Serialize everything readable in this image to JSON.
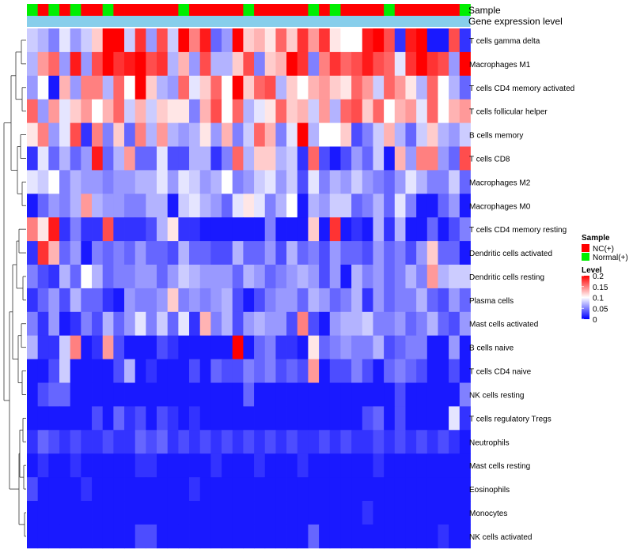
{
  "chart_data": {
    "type": "heatmap",
    "annotation_labels": {
      "sample": "Sample",
      "expression": "Gene expression level"
    },
    "legend": {
      "sample_title": "Sample",
      "sample_entries": [
        {
          "name": "NC(+)",
          "color": "#ff0000"
        },
        {
          "name": "Normal(+)",
          "color": "#00ee00"
        }
      ],
      "level_title": "Level",
      "level_ticks": [
        "0.2",
        "0.15",
        "0.1",
        "0.05",
        "0"
      ],
      "level_tick_values": [
        0.2,
        0.15,
        0.1,
        0.05,
        0
      ],
      "level_range": [
        0,
        0.2
      ]
    },
    "colors": {
      "low": "#0000ff",
      "mid": "#ffffff",
      "high": "#ff0000",
      "nc": "#ff0000",
      "normal": "#00ee00",
      "expression_bar": "#87ceeb"
    },
    "columns_sample": [
      "Normal",
      "NC",
      "Normal",
      "NC",
      "Normal",
      "NC",
      "NC",
      "Normal",
      "NC",
      "NC",
      "NC",
      "NC",
      "NC",
      "NC",
      "Normal",
      "NC",
      "NC",
      "NC",
      "NC",
      "NC",
      "Normal",
      "NC",
      "NC",
      "NC",
      "NC",
      "NC",
      "Normal",
      "NC",
      "Normal",
      "NC",
      "NC",
      "NC",
      "NC",
      "Normal",
      "NC",
      "NC",
      "NC",
      "NC",
      "NC",
      "NC",
      "Normal"
    ],
    "rows": [
      "T cells gamma delta",
      "Macrophages M1",
      "T cells CD4 memory activated",
      "T cells follicular helper",
      "B cells memory",
      "T cells CD8",
      "Macrophages M2",
      "Macrophages M0",
      "T cells CD4 memory resting",
      "Dendritic cells activated",
      "Dendritic cells resting",
      "Plasma cells",
      "Mast cells activated",
      "B cells naive",
      "T cells CD4 naive",
      "NK cells resting",
      "T cells regulatory  Tregs",
      "Neutrophils",
      "Mast cells resting",
      "Eosinophils",
      "Monocytes",
      "NK cells activated"
    ],
    "values": [
      [
        0.08,
        0.07,
        0.05,
        0.09,
        0.06,
        0.08,
        0.12,
        0.2,
        0.2,
        0.08,
        0.18,
        0.06,
        0.17,
        0.08,
        0.2,
        0.15,
        0.19,
        0.04,
        0.06,
        0.2,
        0.12,
        0.13,
        0.11,
        0.16,
        0.12,
        0.18,
        0.14,
        0.18,
        0.11,
        0.1,
        0.1,
        0.19,
        0.2,
        0.17,
        0.02,
        0.19,
        0.2,
        0.01,
        0.01,
        0.17,
        0.02
      ],
      [
        0.07,
        0.14,
        0.16,
        0.06,
        0.19,
        0.06,
        0.17,
        0.2,
        0.18,
        0.19,
        0.2,
        0.17,
        0.18,
        0.07,
        0.13,
        0.06,
        0.17,
        0.07,
        0.07,
        0.12,
        0.17,
        0.05,
        0.12,
        0.13,
        0.2,
        0.18,
        0.05,
        0.15,
        0.18,
        0.16,
        0.17,
        0.19,
        0.17,
        0.16,
        0.09,
        0.18,
        0.2,
        0.18,
        0.17,
        0.06,
        0.2
      ],
      [
        0.06,
        0.1,
        0.01,
        0.13,
        0.06,
        0.15,
        0.15,
        0.07,
        0.16,
        0.1,
        0.2,
        0.12,
        0.07,
        0.06,
        0.16,
        0.09,
        0.12,
        0.16,
        0.1,
        0.2,
        0.12,
        0.16,
        0.17,
        0.07,
        0.12,
        0.1,
        0.13,
        0.14,
        0.12,
        0.11,
        0.16,
        0.14,
        0.08,
        0.16,
        0.14,
        0.11,
        0.07,
        0.16,
        0.1,
        0.07,
        0.04
      ],
      [
        0.16,
        0.06,
        0.14,
        0.09,
        0.12,
        0.14,
        0.1,
        0.13,
        0.16,
        0.08,
        0.13,
        0.08,
        0.12,
        0.11,
        0.11,
        0.05,
        0.13,
        0.17,
        0.1,
        0.16,
        0.07,
        0.09,
        0.11,
        0.16,
        0.12,
        0.13,
        0.08,
        0.14,
        0.07,
        0.16,
        0.17,
        0.12,
        0.16,
        0.1,
        0.13,
        0.14,
        0.09,
        0.16,
        0.1,
        0.13,
        0.14
      ],
      [
        0.11,
        0.15,
        0.06,
        0.09,
        0.17,
        0.02,
        0.15,
        0.05,
        0.12,
        0.04,
        0.15,
        0.07,
        0.14,
        0.07,
        0.06,
        0.07,
        0.11,
        0.06,
        0.13,
        0.05,
        0.08,
        0.16,
        0.13,
        0.05,
        0.09,
        0.2,
        0.07,
        0.1,
        0.1,
        0.12,
        0.03,
        0.05,
        0.08,
        0.13,
        0.07,
        0.04,
        0.08,
        0.12,
        0.07,
        0.06,
        0.08
      ],
      [
        0.02,
        0.09,
        0.04,
        0.07,
        0.04,
        0.06,
        0.19,
        0.04,
        0.07,
        0.14,
        0.04,
        0.04,
        0.09,
        0.03,
        0.03,
        0.07,
        0.07,
        0.02,
        0.05,
        0.16,
        0.07,
        0.12,
        0.12,
        0.07,
        0.08,
        0.02,
        0.16,
        0.03,
        0.01,
        0.03,
        0.06,
        0.04,
        0.08,
        0.01,
        0.13,
        0.06,
        0.15,
        0.15,
        0.06,
        0.04,
        0.17
      ],
      [
        0.09,
        0.08,
        0.1,
        0.05,
        0.07,
        0.06,
        0.06,
        0.05,
        0.06,
        0.06,
        0.07,
        0.07,
        0.09,
        0.06,
        0.09,
        0.08,
        0.06,
        0.07,
        0.1,
        0.05,
        0.06,
        0.08,
        0.09,
        0.06,
        0.08,
        0.03,
        0.09,
        0.05,
        0.07,
        0.06,
        0.08,
        0.06,
        0.05,
        0.04,
        0.06,
        0.09,
        0.07,
        0.05,
        0.05,
        0.08,
        0.04
      ],
      [
        0.01,
        0.04,
        0.06,
        0.05,
        0.07,
        0.14,
        0.07,
        0.06,
        0.06,
        0.05,
        0.05,
        0.07,
        0.07,
        0.01,
        0.08,
        0.09,
        0.07,
        0.06,
        0.04,
        0.09,
        0.11,
        0.09,
        0.05,
        0.07,
        0.1,
        0.01,
        0.07,
        0.06,
        0.08,
        0.08,
        0.04,
        0.05,
        0.07,
        0.04,
        0.09,
        0.05,
        0.01,
        0.01,
        0.04,
        0.06,
        0.01
      ],
      [
        0.15,
        0.11,
        0.19,
        0.02,
        0.05,
        0.02,
        0.02,
        0.17,
        0.02,
        0.02,
        0.02,
        0.03,
        0.07,
        0.11,
        0.02,
        0.02,
        0.01,
        0.01,
        0.01,
        0.01,
        0.01,
        0.01,
        0.05,
        0.01,
        0.01,
        0.01,
        0.12,
        0.01,
        0.18,
        0.01,
        0.02,
        0.01,
        0.07,
        0.02,
        0.07,
        0.01,
        0.01,
        0.04,
        0.01,
        0.03,
        0.05
      ],
      [
        0.02,
        0.18,
        0.13,
        0.04,
        0.06,
        0.01,
        0.05,
        0.04,
        0.05,
        0.04,
        0.06,
        0.04,
        0.04,
        0.03,
        0.07,
        0.04,
        0.04,
        0.03,
        0.03,
        0.07,
        0.04,
        0.04,
        0.06,
        0.03,
        0.07,
        0.04,
        0.05,
        0.03,
        0.06,
        0.04,
        0.04,
        0.03,
        0.06,
        0.04,
        0.05,
        0.03,
        0.06,
        0.12,
        0.04,
        0.04,
        0.01
      ],
      [
        0.05,
        0.03,
        0.02,
        0.07,
        0.04,
        0.1,
        0.07,
        0.04,
        0.05,
        0.05,
        0.06,
        0.06,
        0.04,
        0.06,
        0.08,
        0.07,
        0.06,
        0.06,
        0.06,
        0.04,
        0.07,
        0.06,
        0.04,
        0.05,
        0.06,
        0.07,
        0.06,
        0.03,
        0.06,
        0.01,
        0.07,
        0.05,
        0.06,
        0.04,
        0.05,
        0.07,
        0.05,
        0.14,
        0.07,
        0.08,
        0.08
      ],
      [
        0.02,
        0.04,
        0.06,
        0.03,
        0.07,
        0.04,
        0.04,
        0.02,
        0.01,
        0.06,
        0.05,
        0.05,
        0.06,
        0.12,
        0.05,
        0.06,
        0.05,
        0.06,
        0.07,
        0.03,
        0.01,
        0.03,
        0.05,
        0.06,
        0.06,
        0.04,
        0.07,
        0.06,
        0.04,
        0.05,
        0.07,
        0.02,
        0.06,
        0.04,
        0.05,
        0.05,
        0.07,
        0.04,
        0.03,
        0.06,
        0.04
      ],
      [
        0.05,
        0.02,
        0.06,
        0.01,
        0.02,
        0.05,
        0.03,
        0.07,
        0.04,
        0.06,
        0.09,
        0.05,
        0.08,
        0.04,
        0.09,
        0.02,
        0.13,
        0.05,
        0.07,
        0.03,
        0.06,
        0.07,
        0.06,
        0.06,
        0.03,
        0.15,
        0.03,
        0.01,
        0.06,
        0.07,
        0.07,
        0.08,
        0.05,
        0.05,
        0.06,
        0.04,
        0.05,
        0.07,
        0.04,
        0.03,
        0.06
      ],
      [
        0.07,
        0.02,
        0.02,
        0.08,
        0.15,
        0.01,
        0.02,
        0.14,
        0.03,
        0.01,
        0.01,
        0.01,
        0.03,
        0.02,
        0.01,
        0.01,
        0.01,
        0.01,
        0.01,
        0.2,
        0.01,
        0.04,
        0.05,
        0.02,
        0.02,
        0.01,
        0.11,
        0.04,
        0.05,
        0.06,
        0.05,
        0.05,
        0.07,
        0.03,
        0.04,
        0.05,
        0.05,
        0.01,
        0.01,
        0.06,
        0.01
      ],
      [
        0.01,
        0.01,
        0.03,
        0.08,
        0.01,
        0.01,
        0.01,
        0.01,
        0.03,
        0.07,
        0.01,
        0.02,
        0.01,
        0.01,
        0.01,
        0.03,
        0.01,
        0.04,
        0.03,
        0.03,
        0.05,
        0.04,
        0.05,
        0.03,
        0.04,
        0.03,
        0.14,
        0.01,
        0.03,
        0.03,
        0.05,
        0.03,
        0.01,
        0.04,
        0.05,
        0.04,
        0.03,
        0.01,
        0.01,
        0.03,
        0.01
      ],
      [
        0.01,
        0.03,
        0.04,
        0.04,
        0.01,
        0.01,
        0.01,
        0.01,
        0.01,
        0.01,
        0.01,
        0.01,
        0.01,
        0.01,
        0.01,
        0.01,
        0.01,
        0.01,
        0.01,
        0.01,
        0.04,
        0.01,
        0.01,
        0.01,
        0.01,
        0.01,
        0.01,
        0.01,
        0.01,
        0.01,
        0.01,
        0.01,
        0.01,
        0.01,
        0.03,
        0.01,
        0.01,
        0.01,
        0.01,
        0.01,
        0.05
      ],
      [
        0.01,
        0.01,
        0.01,
        0.01,
        0.01,
        0.01,
        0.03,
        0.01,
        0.04,
        0.02,
        0.03,
        0.01,
        0.03,
        0.02,
        0.01,
        0.02,
        0.01,
        0.01,
        0.01,
        0.01,
        0.01,
        0.01,
        0.01,
        0.01,
        0.01,
        0.01,
        0.01,
        0.01,
        0.01,
        0.01,
        0.01,
        0.03,
        0.04,
        0.01,
        0.03,
        0.01,
        0.01,
        0.01,
        0.01,
        0.09,
        0.02
      ],
      [
        0.02,
        0.04,
        0.03,
        0.02,
        0.03,
        0.02,
        0.02,
        0.03,
        0.02,
        0.02,
        0.04,
        0.03,
        0.04,
        0.02,
        0.03,
        0.02,
        0.03,
        0.02,
        0.03,
        0.02,
        0.03,
        0.02,
        0.03,
        0.02,
        0.03,
        0.02,
        0.02,
        0.03,
        0.02,
        0.03,
        0.02,
        0.02,
        0.03,
        0.02,
        0.03,
        0.02,
        0.03,
        0.02,
        0.03,
        0.02,
        0.01
      ],
      [
        0.01,
        0.02,
        0.01,
        0.01,
        0.02,
        0.01,
        0.01,
        0.01,
        0.01,
        0.01,
        0.02,
        0.02,
        0.01,
        0.01,
        0.01,
        0.01,
        0.01,
        0.02,
        0.01,
        0.01,
        0.01,
        0.02,
        0.01,
        0.01,
        0.01,
        0.02,
        0.01,
        0.01,
        0.01,
        0.01,
        0.01,
        0.01,
        0.02,
        0.01,
        0.01,
        0.01,
        0.01,
        0.01,
        0.01,
        0.01,
        0.01
      ],
      [
        0.03,
        0.01,
        0.01,
        0.01,
        0.01,
        0.02,
        0.01,
        0.01,
        0.01,
        0.01,
        0.01,
        0.01,
        0.01,
        0.01,
        0.01,
        0.02,
        0.01,
        0.01,
        0.01,
        0.01,
        0.01,
        0.01,
        0.01,
        0.01,
        0.01,
        0.01,
        0.01,
        0.01,
        0.01,
        0.01,
        0.01,
        0.01,
        0.01,
        0.01,
        0.01,
        0.01,
        0.01,
        0.01,
        0.01,
        0.01,
        0.01
      ],
      [
        0.01,
        0.01,
        0.01,
        0.01,
        0.01,
        0.01,
        0.01,
        0.01,
        0.01,
        0.01,
        0.01,
        0.01,
        0.01,
        0.01,
        0.01,
        0.01,
        0.01,
        0.01,
        0.01,
        0.01,
        0.01,
        0.01,
        0.01,
        0.01,
        0.01,
        0.01,
        0.01,
        0.01,
        0.01,
        0.01,
        0.01,
        0.02,
        0.01,
        0.01,
        0.01,
        0.01,
        0.01,
        0.01,
        0.01,
        0.01,
        0.01
      ],
      [
        0.01,
        0.01,
        0.01,
        0.01,
        0.01,
        0.01,
        0.01,
        0.01,
        0.01,
        0.01,
        0.03,
        0.03,
        0.01,
        0.01,
        0.01,
        0.01,
        0.01,
        0.01,
        0.01,
        0.01,
        0.01,
        0.01,
        0.01,
        0.01,
        0.01,
        0.01,
        0.04,
        0.01,
        0.01,
        0.01,
        0.01,
        0.01,
        0.01,
        0.01,
        0.01,
        0.01,
        0.01,
        0.01,
        0.02,
        0.01,
        0.01
      ]
    ]
  }
}
